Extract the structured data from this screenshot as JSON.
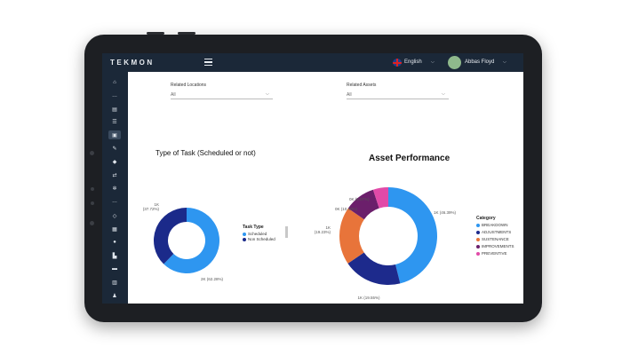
{
  "brand": {
    "logo_text": "TEKMON"
  },
  "header": {
    "language": "English",
    "user_name": "Abbas Floyd",
    "icons": [
      "menu-icon",
      "uk-flag-icon",
      "chevron-down-icon",
      "avatar",
      "chevron-down-icon"
    ]
  },
  "sidebar": {
    "items": [
      {
        "icon": "home-icon",
        "glyph": "⌂"
      },
      {
        "icon": "more-icon",
        "glyph": "…"
      },
      {
        "icon": "chart-icon",
        "glyph": "▤"
      },
      {
        "icon": "list-icon",
        "glyph": "☰"
      },
      {
        "icon": "report-icon",
        "glyph": "▣"
      },
      {
        "icon": "wrench-icon",
        "glyph": "✎"
      },
      {
        "icon": "cube-icon",
        "glyph": "◆"
      },
      {
        "icon": "transfer-icon",
        "glyph": "⇄"
      },
      {
        "icon": "gear-icon",
        "glyph": "✲"
      },
      {
        "icon": "more-icon",
        "glyph": "…"
      },
      {
        "icon": "diamond-icon",
        "glyph": "◇"
      },
      {
        "icon": "grid-icon",
        "glyph": "▦"
      },
      {
        "icon": "location-pin-icon",
        "glyph": "●"
      },
      {
        "icon": "building-icon",
        "glyph": "▙"
      },
      {
        "icon": "table-icon",
        "glyph": "▬"
      },
      {
        "icon": "warehouse-icon",
        "glyph": "▥"
      },
      {
        "icon": "people-icon",
        "glyph": "♟"
      }
    ]
  },
  "filters": {
    "locations": {
      "label": "Related Locations",
      "value": "All"
    },
    "assets": {
      "label": "Related Assets",
      "value": "All"
    }
  },
  "colors": {
    "scheduled": "#2e96f0",
    "non_scheduled": "#1b2a8a",
    "breakdown": "#2e96f0",
    "adjustments": "#1d2a8c",
    "sustenance": "#e8743a",
    "improvements": "#6b1f6b",
    "preventive": "#e14aa8"
  },
  "chart_data": [
    {
      "type": "pie",
      "title": "Type of Task (Scheduled or not)",
      "legend_title": "Task Type",
      "legend_position": "right",
      "series": [
        {
          "name": "Scheduled",
          "value": 2000,
          "label": "2K (62.28%)",
          "percent": 62.28
        },
        {
          "name": "Non Scheduled",
          "value": 1000,
          "label": "1K (37.72%)",
          "percent": 37.72
        }
      ]
    },
    {
      "type": "pie",
      "title": "Asset Performance",
      "legend_title": "Category",
      "legend_position": "right",
      "series": [
        {
          "name": "BREAKDOWN",
          "value": 1000,
          "label": "1K (46.39%)",
          "percent": 46.39
        },
        {
          "name": "ADJUSTMENTS",
          "value": 1000,
          "label": "1K (19.55%)",
          "percent": 19.55
        },
        {
          "name": "SUSTENANCE",
          "value": 1000,
          "label": "1K (19.23%)",
          "percent": 19.23
        },
        {
          "name": "IMPROVEMENTS",
          "value": 0,
          "label": "0K (10.40%)",
          "percent": 10.4
        },
        {
          "name": "PREVENTIVE",
          "value": 0,
          "label": "0K (5.07%)",
          "percent": 5.07
        }
      ]
    }
  ]
}
